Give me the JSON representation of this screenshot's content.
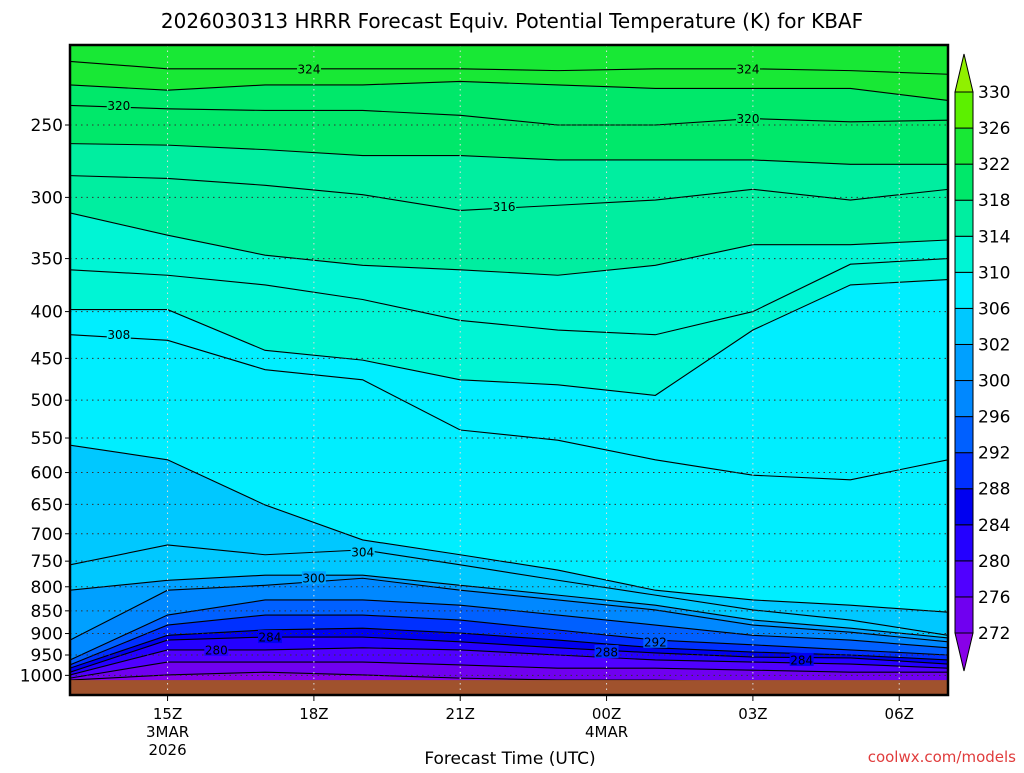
{
  "chart_data": {
    "type": "contour",
    "title": "2026030313 HRRR Forecast Equiv. Potential Temperature (K) for KBAF",
    "xlabel": "Forecast Time (UTC)",
    "ylabel": "",
    "credit": "coolwx.com/models",
    "y_axis": {
      "scale": "log-pressure",
      "range_hPa": [
        1050,
        204
      ],
      "ticks": [
        "250",
        "300",
        "350",
        "400",
        "450",
        "500",
        "550",
        "600",
        "650",
        "700",
        "750",
        "800",
        "850",
        "900",
        "950",
        "1000"
      ]
    },
    "x_axis": {
      "range_hours": [
        0,
        18
      ],
      "start": "13Z 3MAR 2026",
      "ticks": [
        {
          "hour": 2,
          "label": "15Z",
          "sub1": "3MAR",
          "sub2": "2026"
        },
        {
          "hour": 5,
          "label": "18Z"
        },
        {
          "hour": 8,
          "label": "21Z"
        },
        {
          "hour": 11,
          "label": "00Z",
          "sub1": "4MAR"
        },
        {
          "hour": 14,
          "label": "03Z"
        },
        {
          "hour": 17,
          "label": "06Z"
        }
      ]
    },
    "surface_pressure_hPa": 1012,
    "colors": {
      "ground": "#a0522d"
    },
    "colorbar": {
      "levels": [
        "272",
        "276",
        "280",
        "284",
        "288",
        "292",
        "296",
        "300",
        "302",
        "306",
        "310",
        "314",
        "318",
        "322",
        "326",
        "330"
      ],
      "colors": [
        "#8800e8",
        "#7000f0",
        "#5000ff",
        "#2400ff",
        "#0000f0",
        "#0030ff",
        "#0060ff",
        "#0088ff",
        "#00a0ff",
        "#00c8ff",
        "#00eeff",
        "#00f5d5",
        "#00eea0",
        "#00e86a",
        "#18e835",
        "#5cf000",
        "#90f000"
      ]
    },
    "sample_hours": [
      0,
      2,
      4,
      6,
      8,
      10,
      12,
      14,
      16,
      18
    ],
    "contours": [
      {
        "level": 324,
        "p": [
          213,
          217,
          217,
          217,
          217,
          218,
          217,
          217,
          218,
          220
        ]
      },
      {
        "level": 322,
        "p": [
          226,
          229,
          226,
          226,
          224,
          226,
          228,
          228,
          228,
          235
        ]
      },
      {
        "level": 320,
        "p": [
          238,
          240,
          241,
          241,
          244,
          250,
          250,
          246,
          248,
          247
        ]
      },
      {
        "level": 318,
        "p": [
          262,
          263,
          266,
          270,
          270,
          273,
          273,
          273,
          276,
          276
        ]
      },
      {
        "level": 316,
        "p": [
          284,
          286,
          291,
          298,
          310,
          306,
          302,
          294,
          302,
          294
        ]
      },
      {
        "level": 314,
        "p": [
          312,
          330,
          347,
          356,
          360,
          365,
          356,
          338,
          338,
          334
        ]
      },
      {
        "level": 312,
        "p": [
          360,
          365,
          374,
          388,
          409,
          419,
          424,
          400,
          355,
          350
        ]
      },
      {
        "level": 310,
        "p": [
          398,
          398,
          441,
          452,
          475,
          481,
          494,
          419,
          374,
          369
        ]
      },
      {
        "level": 308,
        "p": [
          424,
          430,
          463,
          475,
          539,
          553,
          581,
          604,
          611,
          581
        ]
      },
      {
        "level": 306,
        "p": [
          560,
          581,
          651,
          711,
          738,
          767,
          807,
          827,
          838,
          853
        ]
      },
      {
        "level": 304,
        "p": [
          757,
          720,
          738,
          729,
          757,
          787,
          817,
          848,
          870,
          904
        ]
      },
      {
        "level": 302,
        "p": [
          807,
          787,
          777,
          777,
          797,
          817,
          838,
          870,
          888,
          910
        ]
      },
      {
        "level": 300,
        "p": [
          915,
          807,
          797,
          783,
          807,
          827,
          848,
          881,
          897,
          919
        ]
      },
      {
        "level": 296,
        "p": [
          962,
          859,
          827,
          827,
          838,
          859,
          881,
          904,
          915,
          933
        ]
      },
      {
        "level": 292,
        "p": [
          974,
          881,
          859,
          859,
          870,
          892,
          915,
          926,
          938,
          950
        ]
      },
      {
        "level": 288,
        "p": [
          982,
          904,
          892,
          888,
          899,
          915,
          933,
          943,
          950,
          962
        ]
      },
      {
        "level": 284,
        "p": [
          992,
          915,
          908,
          908,
          919,
          933,
          945,
          955,
          957,
          972
        ]
      },
      {
        "level": 280,
        "p": [
          999,
          938,
          938,
          933,
          938,
          950,
          962,
          967,
          972,
          982
        ]
      },
      {
        "level": 276,
        "p": [
          1007,
          967,
          967,
          967,
          974,
          982,
          982,
          987,
          992,
          992
        ]
      },
      {
        "level": 272,
        "p": [
          1012,
          999,
          992,
          999,
          1007,
          1012,
          1012,
          1017,
          1017,
          1017
        ]
      }
    ],
    "contour_labels": [
      {
        "text": "324",
        "hour": 4.9,
        "p": 217
      },
      {
        "text": "324",
        "hour": 13.9,
        "p": 217
      },
      {
        "text": "320",
        "hour": 1.0,
        "p": 238
      },
      {
        "text": "320",
        "hour": 13.9,
        "p": 246
      },
      {
        "text": "316",
        "hour": 8.9,
        "p": 307
      },
      {
        "text": "308",
        "hour": 1.0,
        "p": 424
      },
      {
        "text": "304",
        "hour": 6.0,
        "p": 733
      },
      {
        "text": "300",
        "hour": 5.0,
        "p": 783
      },
      {
        "text": "284",
        "hour": 4.1,
        "p": 908
      },
      {
        "text": "280",
        "hour": 3.0,
        "p": 938
      },
      {
        "text": "292",
        "hour": 12.0,
        "p": 919
      },
      {
        "text": "288",
        "hour": 11.0,
        "p": 943
      },
      {
        "text": "284",
        "hour": 15.0,
        "p": 962
      }
    ]
  }
}
